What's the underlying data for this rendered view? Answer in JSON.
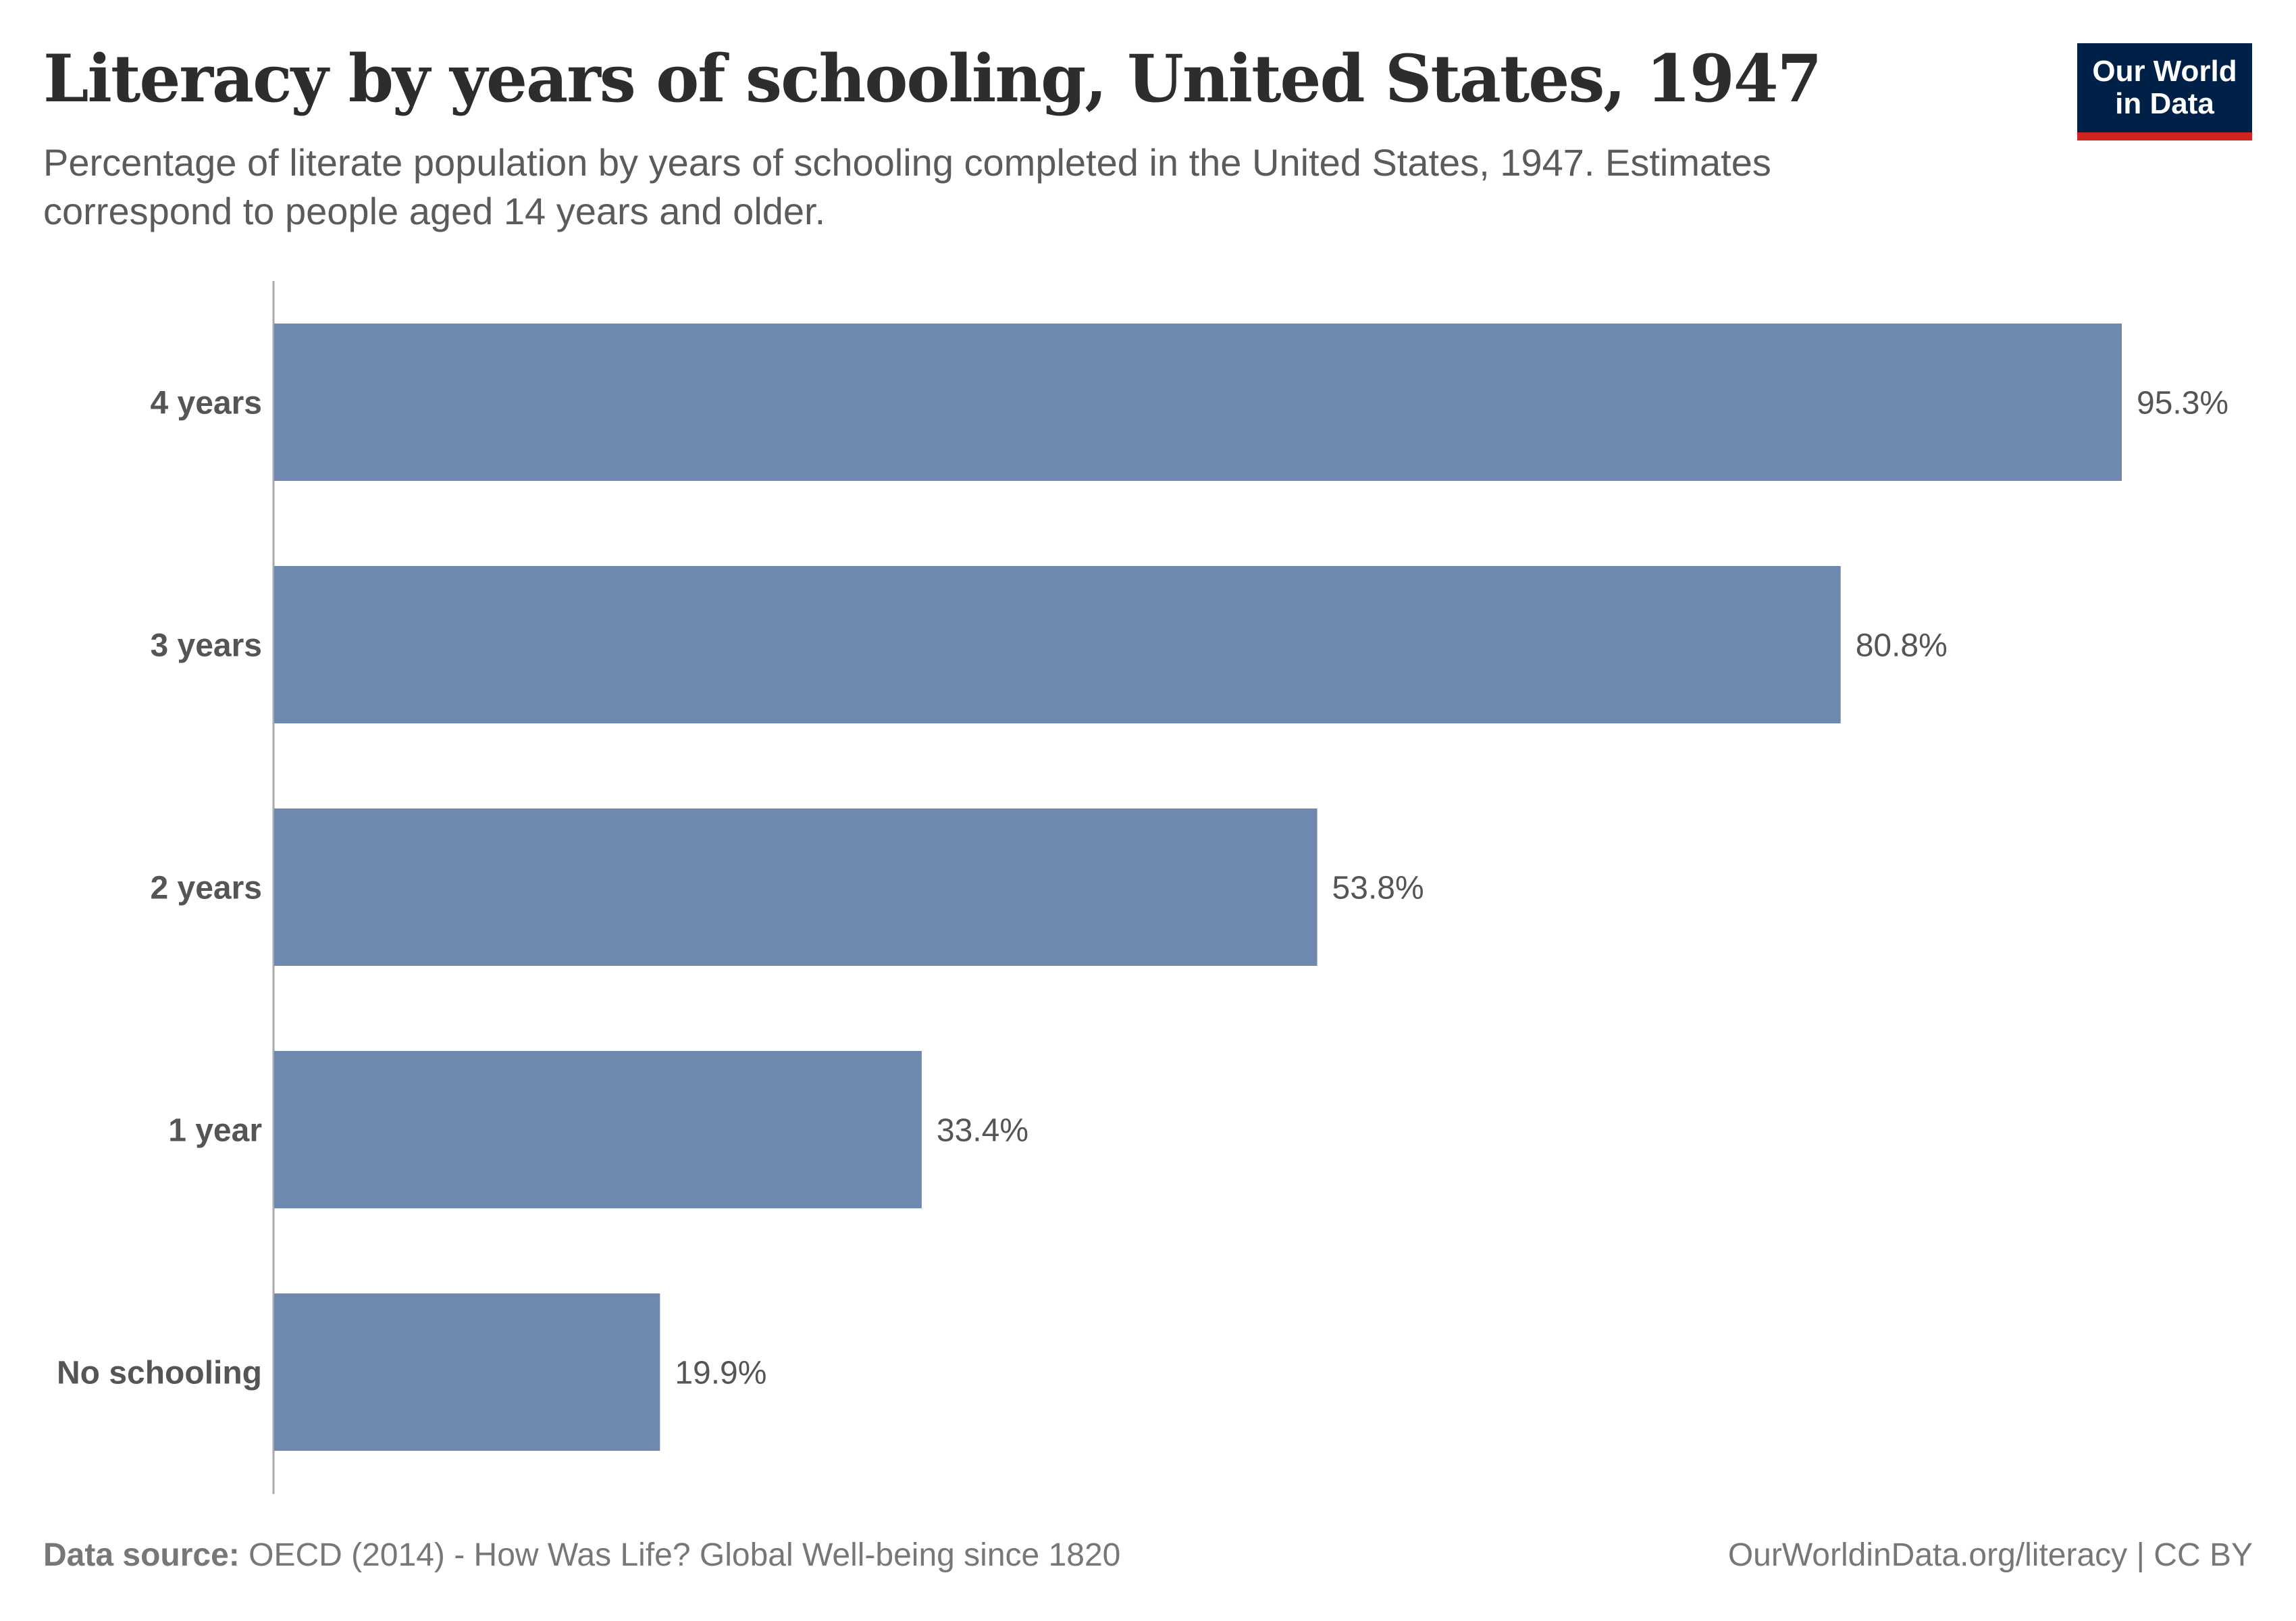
{
  "title": "Literacy by years of schooling, United States, 1947",
  "subtitle": "Percentage of literate population by years of schooling completed in the United States, 1947. Estimates correspond to people aged 14 years and older.",
  "logo": {
    "line1": "Our World",
    "line2": "in Data",
    "bg_color": "#002147",
    "accent_color": "#ce261e"
  },
  "footer": {
    "source_label": "Data source:",
    "source_text": "OECD (2014) - How Was Life? Global Well-being since 1820",
    "right_text": "OurWorldinData.org/literacy | CC BY"
  },
  "chart_data": {
    "type": "bar",
    "orientation": "horizontal",
    "categories": [
      "4 years",
      "3 years",
      "2 years",
      "1 year",
      "No schooling"
    ],
    "values": [
      95.3,
      80.8,
      53.8,
      33.4,
      19.9
    ],
    "value_labels": [
      "95.3%",
      "80.8%",
      "53.8%",
      "33.4%",
      "19.9%"
    ],
    "unit": "%",
    "xlim": [
      0,
      95.3
    ],
    "grid": false,
    "bar_color": "#6f88b0"
  }
}
